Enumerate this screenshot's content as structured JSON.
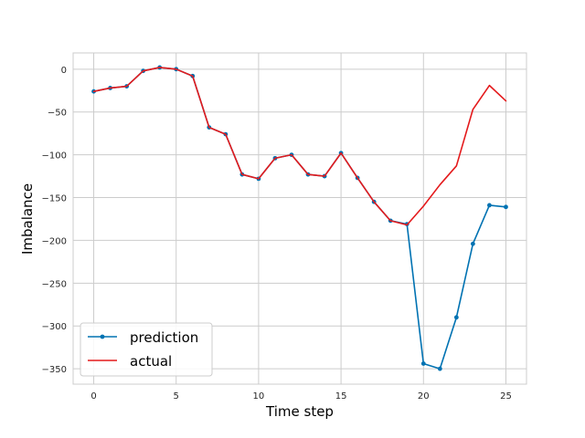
{
  "chart_data": {
    "type": "line",
    "xlabel": "Time step",
    "ylabel": "Imbalance",
    "xlim": [
      -1.25,
      26.25
    ],
    "ylim": [
      -368,
      19
    ],
    "x_ticks": [
      0,
      5,
      10,
      15,
      20,
      25
    ],
    "y_ticks": [
      0,
      -50,
      -100,
      -150,
      -200,
      -250,
      -300,
      -350
    ],
    "x_tick_labels": [
      "0",
      "5",
      "10",
      "15",
      "20",
      "25"
    ],
    "y_tick_labels": [
      "0",
      "−50",
      "−100",
      "−150",
      "−200",
      "−250",
      "−300",
      "−350"
    ],
    "grid": true,
    "legend_position": "lower-left",
    "x": [
      0,
      1,
      2,
      3,
      4,
      5,
      6,
      7,
      8,
      9,
      10,
      11,
      12,
      13,
      14,
      15,
      16,
      17,
      18,
      19,
      20,
      21,
      22,
      23,
      24,
      25
    ],
    "series": [
      {
        "name": "prediction",
        "color": "#0072b2",
        "marker": "dot",
        "values": [
          -26,
          -22,
          -20,
          -2,
          2,
          0,
          -8,
          -68,
          -76,
          -123,
          -128,
          -104,
          -100,
          -123,
          -125,
          -98,
          -127,
          -155,
          -177,
          -181,
          -344,
          -350,
          -290,
          -204,
          -159,
          -161
        ]
      },
      {
        "name": "actual",
        "color": "#e41a1c",
        "marker": "none",
        "values": [
          -26,
          -22,
          -20,
          -2,
          2,
          0,
          -8,
          -68,
          -76,
          -123,
          -128,
          -104,
          -100,
          -123,
          -125,
          -98,
          -127,
          -155,
          -177,
          -182,
          -160,
          -135,
          -113,
          -47,
          -19,
          -37
        ]
      }
    ]
  }
}
